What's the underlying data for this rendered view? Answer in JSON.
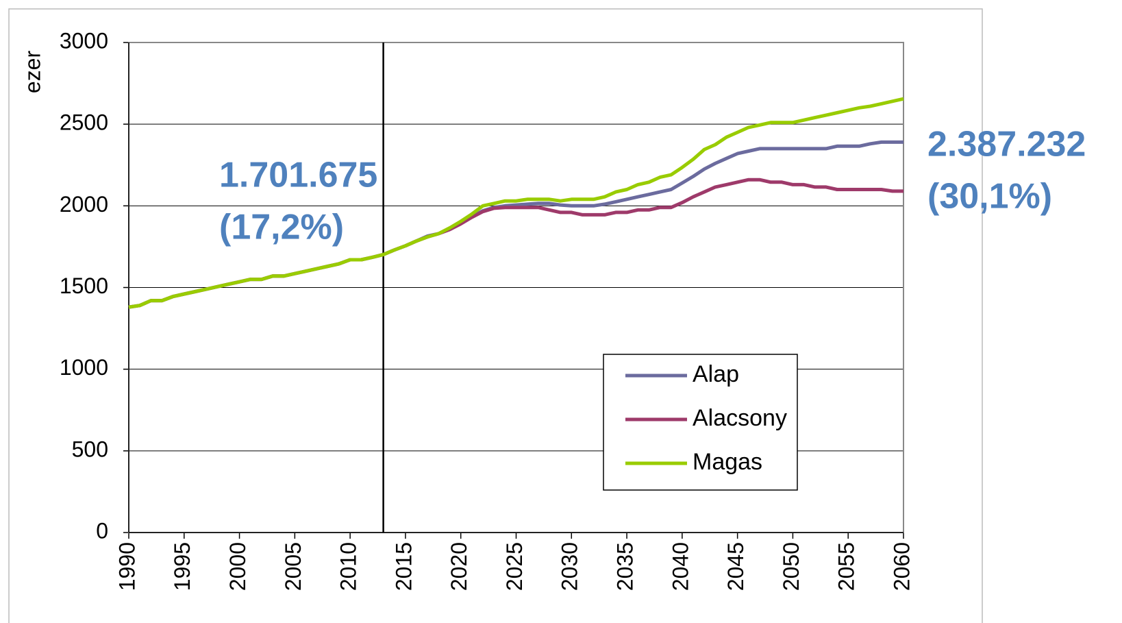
{
  "chart_data": {
    "type": "line",
    "y_label": "ezer",
    "x": [
      1990,
      1991,
      1992,
      1993,
      1994,
      1995,
      1996,
      1997,
      1998,
      1999,
      2000,
      2001,
      2002,
      2003,
      2004,
      2005,
      2006,
      2007,
      2008,
      2009,
      2010,
      2011,
      2012,
      2013,
      2014,
      2015,
      2016,
      2017,
      2018,
      2019,
      2020,
      2021,
      2022,
      2023,
      2024,
      2025,
      2026,
      2027,
      2028,
      2029,
      2030,
      2031,
      2032,
      2033,
      2034,
      2035,
      2036,
      2037,
      2038,
      2039,
      2040,
      2041,
      2042,
      2043,
      2044,
      2045,
      2046,
      2047,
      2048,
      2049,
      2050,
      2051,
      2052,
      2053,
      2054,
      2055,
      2056,
      2057,
      2058,
      2059,
      2060
    ],
    "series": [
      {
        "name": "Alap",
        "color": "#6b6b9e",
        "values": [
          1380,
          1390,
          1420,
          1420,
          1445,
          1460,
          1475,
          1490,
          1505,
          1520,
          1535,
          1550,
          1550,
          1570,
          1570,
          1585,
          1600,
          1615,
          1630,
          1645,
          1670,
          1670,
          1685,
          1702,
          1730,
          1755,
          1785,
          1815,
          1830,
          1860,
          1895,
          1935,
          1970,
          1990,
          2000,
          2005,
          2010,
          2015,
          2015,
          2005,
          2000,
          2000,
          2000,
          2010,
          2025,
          2040,
          2055,
          2070,
          2085,
          2100,
          2140,
          2180,
          2225,
          2260,
          2290,
          2320,
          2335,
          2350,
          2350,
          2350,
          2350,
          2350,
          2350,
          2350,
          2365,
          2365,
          2365,
          2380,
          2390,
          2390,
          2390
        ]
      },
      {
        "name": "Alacsony",
        "color": "#9e3a6a",
        "values": [
          1380,
          1390,
          1420,
          1420,
          1445,
          1460,
          1475,
          1490,
          1505,
          1520,
          1535,
          1550,
          1550,
          1570,
          1570,
          1585,
          1600,
          1615,
          1630,
          1645,
          1670,
          1670,
          1685,
          1702,
          1730,
          1755,
          1785,
          1810,
          1830,
          1855,
          1890,
          1930,
          1965,
          1985,
          1990,
          1990,
          1990,
          1990,
          1975,
          1960,
          1960,
          1945,
          1945,
          1945,
          1960,
          1960,
          1975,
          1975,
          1990,
          1990,
          2020,
          2055,
          2085,
          2115,
          2130,
          2145,
          2160,
          2160,
          2145,
          2145,
          2130,
          2130,
          2115,
          2115,
          2100,
          2100,
          2100,
          2100,
          2100,
          2090,
          2090
        ]
      },
      {
        "name": "Magas",
        "color": "#99cc00",
        "values": [
          1380,
          1390,
          1420,
          1420,
          1445,
          1460,
          1475,
          1490,
          1505,
          1520,
          1535,
          1550,
          1550,
          1570,
          1570,
          1585,
          1600,
          1615,
          1630,
          1645,
          1670,
          1670,
          1685,
          1702,
          1730,
          1755,
          1785,
          1810,
          1830,
          1865,
          1905,
          1950,
          2000,
          2015,
          2030,
          2030,
          2040,
          2040,
          2040,
          2030,
          2040,
          2040,
          2040,
          2055,
          2085,
          2100,
          2130,
          2145,
          2175,
          2190,
          2235,
          2285,
          2345,
          2375,
          2420,
          2450,
          2480,
          2495,
          2510,
          2510,
          2510,
          2525,
          2540,
          2555,
          2570,
          2585,
          2600,
          2610,
          2625,
          2640,
          2655
        ]
      }
    ],
    "xlim": [
      1990,
      2060
    ],
    "xticks": [
      1990,
      1995,
      2000,
      2005,
      2010,
      2015,
      2020,
      2025,
      2030,
      2035,
      2040,
      2045,
      2050,
      2055,
      2060
    ],
    "ylim": [
      0,
      3000
    ],
    "yticks": [
      0,
      500,
      1000,
      1500,
      2000,
      2500,
      3000
    ],
    "grid": true,
    "vline": 2013,
    "annotations": [
      {
        "lines": [
          "1.701.675",
          "(17,2%)"
        ]
      },
      {
        "lines": [
          "2.387.232",
          "(30,1%)"
        ]
      }
    ],
    "legend": "lower right"
  }
}
